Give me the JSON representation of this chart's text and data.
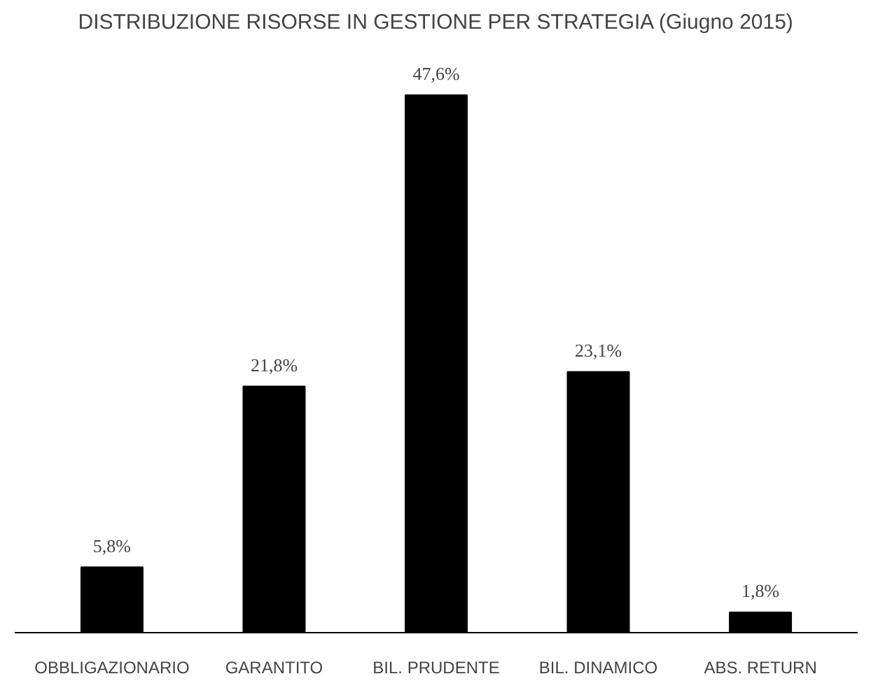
{
  "chart_data": {
    "type": "bar",
    "title": "DISTRIBUZIONE RISORSE IN GESTIONE PER STRATEGIA (Giugno 2015)",
    "categories": [
      "OBBLIGAZIONARIO",
      "GARANTITO",
      "BIL. PRUDENTE",
      "BIL. DINAMICO",
      "ABS. RETURN"
    ],
    "values": [
      5.8,
      21.8,
      47.6,
      23.1,
      1.8
    ],
    "value_labels": [
      "5,8%",
      "21,8%",
      "47,6%",
      "23,1%",
      "1,8%"
    ],
    "color": "#000000",
    "grid": false
  }
}
